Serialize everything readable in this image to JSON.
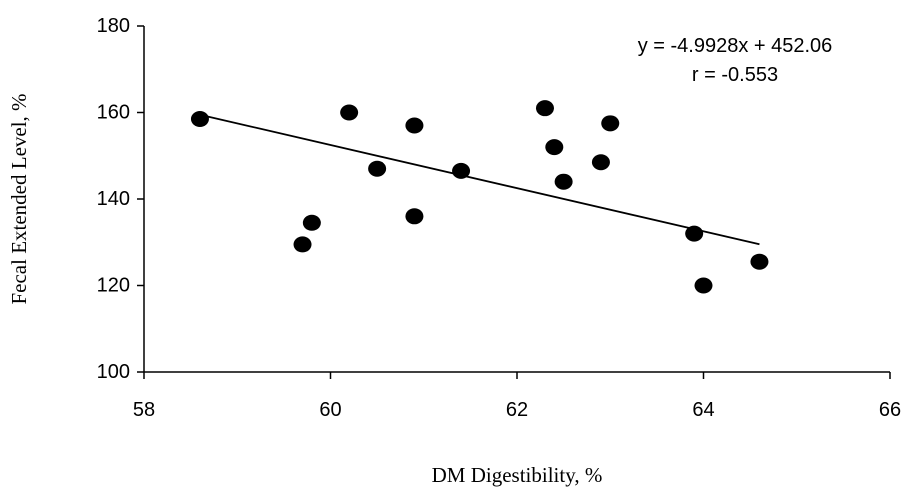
{
  "chart_data": {
    "type": "scatter",
    "title": "",
    "xlabel": "DM Digestibility, %",
    "ylabel": "Fecal Extended Level, %",
    "xlim": [
      58,
      66
    ],
    "ylim": [
      100,
      180
    ],
    "xticks": [
      "58",
      "60",
      "62",
      "64",
      "66"
    ],
    "yticks": [
      "100",
      "120",
      "140",
      "160",
      "180"
    ],
    "grid": false,
    "series": [
      {
        "points": [
          [
            58.6,
            158.5
          ],
          [
            59.7,
            129.5
          ],
          [
            59.8,
            134.5
          ],
          [
            60.2,
            160.0
          ],
          [
            60.5,
            147.0
          ],
          [
            60.9,
            157.0
          ],
          [
            60.9,
            136.0
          ],
          [
            61.4,
            146.5
          ],
          [
            62.3,
            161.0
          ],
          [
            62.4,
            152.0
          ],
          [
            62.5,
            144.0
          ],
          [
            62.9,
            148.5
          ],
          [
            63.0,
            157.5
          ],
          [
            63.9,
            132.0
          ],
          [
            64.0,
            120.0
          ],
          [
            64.6,
            125.5
          ]
        ]
      }
    ],
    "trendline": {
      "slope": -4.9928,
      "intercept": 452.06,
      "x_range": [
        58.6,
        64.6
      ]
    },
    "annotations": {
      "equation": "y = -4.9928x + 452.06",
      "r_value": "r = -0.553"
    }
  }
}
